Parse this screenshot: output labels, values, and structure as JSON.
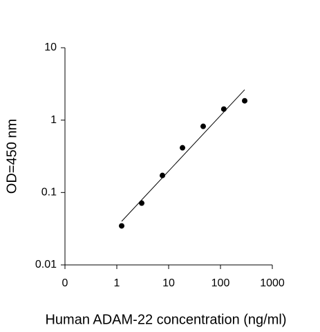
{
  "chart_data": {
    "type": "scatter",
    "x_label": "Human ADAM-22 concentration (ng/ml)",
    "y_label": "OD=450 nm",
    "x": [
      1.24,
      3.02,
      7.59,
      18.5,
      46.4,
      116,
      293
    ],
    "values": [
      0.0346,
      0.0714,
      0.172,
      0.415,
      0.82,
      1.42,
      1.85
    ],
    "color": "#000000",
    "trendline": {
      "x": [
        1.24,
        293
      ],
      "values": [
        0.04,
        2.63
      ],
      "color": "#000000"
    },
    "xlim": [
      0.1,
      1000
    ],
    "xticks": [
      {
        "value": 0.1,
        "label": "0"
      },
      1,
      10,
      100,
      1000
    ],
    "ylim": [
      0.01,
      10
    ],
    "yticks": [
      0.01,
      0.1,
      1,
      10
    ],
    "xscale": "log",
    "yscale": "log",
    "grid": false
  }
}
